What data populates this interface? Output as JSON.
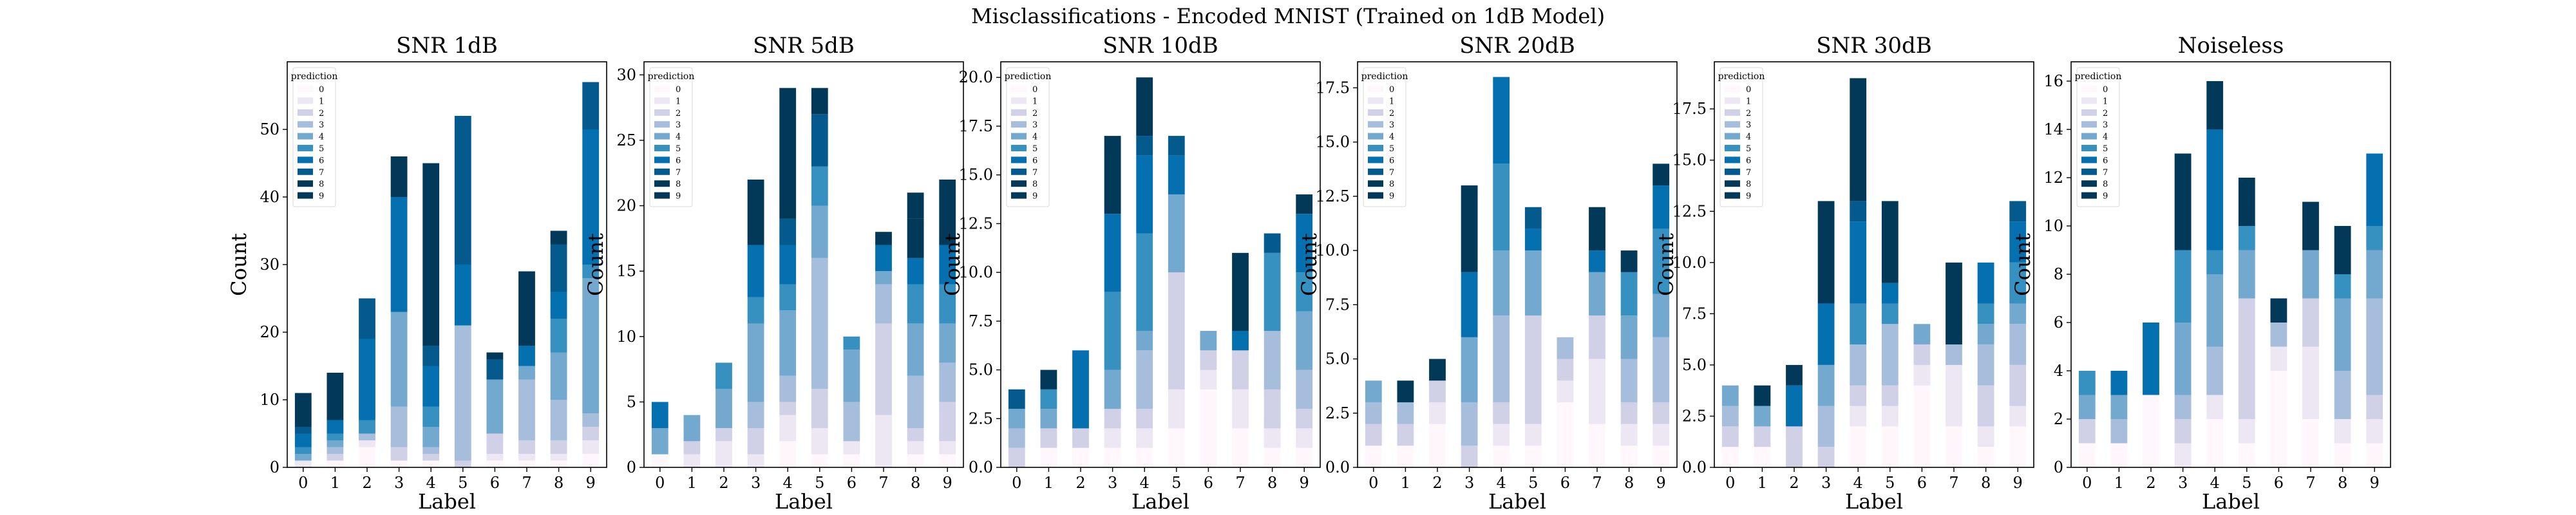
{
  "figure": {
    "suptitle": "Misclassifications - Encoded MNIST (Trained on 1dB Model)"
  },
  "palette": [
    "#fff7fb",
    "#ece7f2",
    "#d0d1e6",
    "#a6bddb",
    "#74a9cf",
    "#3690c0",
    "#0570b0",
    "#045a8d",
    "#023858",
    "#023858"
  ],
  "chart_data": [
    {
      "type": "bar",
      "stacked": true,
      "title": "SNR 1dB",
      "xlabel": "Label",
      "ylabel": "Count",
      "categories": [
        "0",
        "1",
        "2",
        "3",
        "4",
        "5",
        "6",
        "7",
        "8",
        "9"
      ],
      "ylim": [
        0,
        60
      ],
      "yticks": [
        0,
        10,
        20,
        30,
        40,
        50
      ],
      "legend": {
        "title": "prediction",
        "placement": "top-left",
        "entries": [
          "0",
          "1",
          "2",
          "3",
          "4",
          "5",
          "6",
          "7",
          "8",
          "9"
        ]
      },
      "series": [
        {
          "name": "0",
          "values": [
            0,
            1,
            3,
            1,
            1,
            0,
            1,
            1,
            1,
            2
          ]
        },
        {
          "name": "1",
          "values": [
            1,
            0,
            1,
            0,
            0,
            0,
            1,
            1,
            1,
            2
          ]
        },
        {
          "name": "2",
          "values": [
            0,
            1,
            0,
            2,
            1,
            1,
            3,
            2,
            2,
            2
          ]
        },
        {
          "name": "3",
          "values": [
            0,
            1,
            1,
            6,
            1,
            20,
            0,
            9,
            6,
            2
          ]
        },
        {
          "name": "4",
          "values": [
            1,
            1,
            0,
            14,
            3,
            0,
            8,
            2,
            7,
            20
          ]
        },
        {
          "name": "5",
          "values": [
            1,
            1,
            2,
            0,
            3,
            0,
            0,
            0,
            5,
            2
          ]
        },
        {
          "name": "6",
          "values": [
            2,
            2,
            12,
            17,
            6,
            9,
            0,
            3,
            4,
            20
          ]
        },
        {
          "name": "7",
          "values": [
            1,
            0,
            6,
            0,
            3,
            22,
            3,
            0,
            7,
            7
          ]
        },
        {
          "name": "8",
          "values": [
            3,
            6,
            0,
            6,
            27,
            0,
            1,
            10,
            0,
            0
          ]
        },
        {
          "name": "9",
          "values": [
            2,
            1,
            0,
            0,
            0,
            0,
            0,
            1,
            2,
            0
          ]
        }
      ]
    },
    {
      "type": "bar",
      "stacked": true,
      "title": "SNR 5dB",
      "xlabel": "Label",
      "ylabel": "Count",
      "categories": [
        "0",
        "1",
        "2",
        "3",
        "4",
        "5",
        "6",
        "7",
        "8",
        "9"
      ],
      "ylim": [
        0,
        31
      ],
      "yticks": [
        0,
        5,
        10,
        15,
        20,
        25,
        30
      ],
      "legend": {
        "title": "prediction",
        "placement": "top-left",
        "entries": [
          "0",
          "1",
          "2",
          "3",
          "4",
          "5",
          "6",
          "7",
          "8",
          "9"
        ]
      },
      "series": [
        {
          "name": "0",
          "values": [
            1,
            0,
            0,
            0,
            2,
            1,
            1,
            0,
            1,
            1
          ]
        },
        {
          "name": "1",
          "values": [
            0,
            1,
            2,
            1,
            2,
            2,
            1,
            4,
            1,
            1
          ]
        },
        {
          "name": "2",
          "values": [
            0,
            1,
            1,
            2,
            1,
            3,
            0,
            7,
            1,
            3
          ]
        },
        {
          "name": "3",
          "values": [
            0,
            0,
            0,
            2,
            2,
            10,
            3,
            3,
            4,
            3
          ]
        },
        {
          "name": "4",
          "values": [
            2,
            2,
            3,
            6,
            5,
            4,
            4,
            1,
            4,
            3
          ]
        },
        {
          "name": "5",
          "values": [
            0,
            0,
            2,
            2,
            2,
            3,
            1,
            0,
            3,
            3
          ]
        },
        {
          "name": "6",
          "values": [
            2,
            0,
            0,
            4,
            3,
            0,
            0,
            2,
            2,
            3
          ]
        },
        {
          "name": "7",
          "values": [
            0,
            0,
            0,
            0,
            2,
            4,
            0,
            0,
            0,
            0
          ]
        },
        {
          "name": "8",
          "values": [
            0,
            0,
            0,
            5,
            10,
            2,
            0,
            1,
            3,
            5
          ]
        },
        {
          "name": "9",
          "values": [
            0,
            0,
            0,
            0,
            0,
            0,
            0,
            0,
            2,
            0
          ]
        }
      ]
    },
    {
      "type": "bar",
      "stacked": true,
      "title": "SNR 10dB",
      "xlabel": "Label",
      "ylabel": "Count",
      "categories": [
        "0",
        "1",
        "2",
        "3",
        "4",
        "5",
        "6",
        "7",
        "8",
        "9"
      ],
      "ylim": [
        0,
        20.8
      ],
      "yticks": [
        0,
        2.5,
        5,
        7.5,
        10,
        12.5,
        15,
        17.5,
        20
      ],
      "ytick_decimals": 1,
      "legend": {
        "title": "prediction",
        "placement": "top-left",
        "entries": [
          "0",
          "1",
          "2",
          "3",
          "4",
          "5",
          "6",
          "7",
          "8",
          "9"
        ]
      },
      "series": [
        {
          "name": "0",
          "values": [
            0,
            1,
            1,
            1,
            1,
            2,
            4,
            2,
            1,
            1
          ]
        },
        {
          "name": "1",
          "values": [
            0,
            0,
            0,
            1,
            1,
            2,
            1,
            2,
            1,
            1
          ]
        },
        {
          "name": "2",
          "values": [
            1,
            1,
            1,
            1,
            1,
            6,
            1,
            2,
            2,
            1
          ]
        },
        {
          "name": "3",
          "values": [
            1,
            0,
            0,
            0,
            3,
            0,
            0,
            0,
            3,
            2
          ]
        },
        {
          "name": "4",
          "values": [
            1,
            1,
            0,
            2,
            1,
            4,
            1,
            0,
            0,
            3
          ]
        },
        {
          "name": "5",
          "values": [
            0,
            1,
            0,
            4,
            5,
            0,
            0,
            0,
            4,
            2
          ]
        },
        {
          "name": "6",
          "values": [
            0,
            0,
            4,
            4,
            4,
            2,
            0,
            1,
            0,
            3
          ]
        },
        {
          "name": "7",
          "values": [
            1,
            0,
            0,
            0,
            1,
            1,
            0,
            0,
            1,
            0
          ]
        },
        {
          "name": "8",
          "values": [
            0,
            1,
            0,
            4,
            3,
            0,
            0,
            4,
            0,
            1
          ]
        },
        {
          "name": "9",
          "values": [
            0,
            0,
            0,
            0,
            0,
            0,
            0,
            0,
            0,
            0
          ]
        }
      ]
    },
    {
      "type": "bar",
      "stacked": true,
      "title": "SNR 20dB",
      "xlabel": "Label",
      "ylabel": "Count",
      "categories": [
        "0",
        "1",
        "2",
        "3",
        "4",
        "5",
        "6",
        "7",
        "8",
        "9"
      ],
      "ylim": [
        0,
        18.7
      ],
      "yticks": [
        0,
        2.5,
        5,
        7.5,
        10,
        12.5,
        15,
        17.5
      ],
      "ytick_decimals": 1,
      "legend": {
        "title": "prediction",
        "placement": "top-left",
        "entries": [
          "0",
          "1",
          "2",
          "3",
          "4",
          "5",
          "6",
          "7",
          "8",
          "9"
        ]
      },
      "series": [
        {
          "name": "0",
          "values": [
            1,
            1,
            2,
            0,
            1,
            1,
            3,
            2,
            1,
            1
          ]
        },
        {
          "name": "1",
          "values": [
            0,
            0,
            1,
            0,
            1,
            1,
            1,
            3,
            1,
            1
          ]
        },
        {
          "name": "2",
          "values": [
            1,
            1,
            1,
            1,
            1,
            5,
            1,
            2,
            1,
            1
          ]
        },
        {
          "name": "3",
          "values": [
            1,
            1,
            0,
            2,
            4,
            0,
            1,
            0,
            2,
            3
          ]
        },
        {
          "name": "4",
          "values": [
            1,
            0,
            0,
            3,
            3,
            3,
            0,
            2,
            2,
            2
          ]
        },
        {
          "name": "5",
          "values": [
            0,
            0,
            0,
            0,
            4,
            0,
            0,
            0,
            2,
            3
          ]
        },
        {
          "name": "6",
          "values": [
            0,
            0,
            0,
            3,
            4,
            1,
            0,
            1,
            0,
            2
          ]
        },
        {
          "name": "7",
          "values": [
            0,
            0,
            0,
            0,
            0,
            1,
            0,
            0,
            0,
            0
          ]
        },
        {
          "name": "8",
          "values": [
            0,
            1,
            0,
            4,
            0,
            0,
            0,
            2,
            1,
            1
          ]
        },
        {
          "name": "9",
          "values": [
            0,
            0,
            1,
            0,
            0,
            0,
            0,
            0,
            0,
            0
          ]
        }
      ]
    },
    {
      "type": "bar",
      "stacked": true,
      "title": "SNR 30dB",
      "xlabel": "Label",
      "ylabel": "Count",
      "categories": [
        "0",
        "1",
        "2",
        "3",
        "4",
        "5",
        "6",
        "7",
        "8",
        "9"
      ],
      "ylim": [
        0,
        19.8
      ],
      "yticks": [
        0,
        2.5,
        5,
        7.5,
        10,
        12.5,
        15,
        17.5
      ],
      "ytick_decimals": 1,
      "legend": {
        "title": "prediction",
        "placement": "top-left",
        "entries": [
          "0",
          "1",
          "2",
          "3",
          "4",
          "5",
          "6",
          "7",
          "8",
          "9"
        ]
      },
      "series": [
        {
          "name": "0",
          "values": [
            1,
            1,
            0,
            0,
            2,
            2,
            4,
            2,
            1,
            2
          ]
        },
        {
          "name": "1",
          "values": [
            0,
            0,
            0,
            0,
            1,
            1,
            1,
            3,
            1,
            1
          ]
        },
        {
          "name": "2",
          "values": [
            1,
            1,
            2,
            1,
            1,
            1,
            1,
            0,
            2,
            2
          ]
        },
        {
          "name": "3",
          "values": [
            1,
            0,
            0,
            2,
            2,
            3,
            0,
            1,
            2,
            2
          ]
        },
        {
          "name": "4",
          "values": [
            1,
            1,
            0,
            2,
            0,
            0,
            1,
            0,
            1,
            1
          ]
        },
        {
          "name": "5",
          "values": [
            0,
            0,
            0,
            0,
            2,
            1,
            0,
            0,
            1,
            2
          ]
        },
        {
          "name": "6",
          "values": [
            0,
            0,
            2,
            3,
            4,
            1,
            0,
            0,
            2,
            2
          ]
        },
        {
          "name": "7",
          "values": [
            0,
            0,
            0,
            0,
            1,
            0,
            0,
            0,
            0,
            1
          ]
        },
        {
          "name": "8",
          "values": [
            0,
            1,
            1,
            5,
            6,
            4,
            0,
            4,
            0,
            0
          ]
        },
        {
          "name": "9",
          "values": [
            0,
            0,
            0,
            0,
            0,
            0,
            0,
            0,
            0,
            0
          ]
        }
      ]
    },
    {
      "type": "bar",
      "stacked": true,
      "title": "Noiseless",
      "xlabel": "Label",
      "ylabel": "Count",
      "categories": [
        "0",
        "1",
        "2",
        "3",
        "4",
        "5",
        "6",
        "7",
        "8",
        "9"
      ],
      "ylim": [
        0,
        16.8
      ],
      "yticks": [
        0,
        2,
        4,
        6,
        8,
        10,
        12,
        14,
        16
      ],
      "legend": {
        "title": "prediction",
        "placement": "top-left",
        "entries": [
          "0",
          "1",
          "2",
          "3",
          "4",
          "5",
          "6",
          "7",
          "8",
          "9"
        ]
      },
      "series": [
        {
          "name": "0",
          "values": [
            1,
            1,
            3,
            0,
            2,
            1,
            4,
            2,
            1,
            1
          ]
        },
        {
          "name": "1",
          "values": [
            0,
            0,
            0,
            1,
            1,
            1,
            1,
            3,
            1,
            1
          ]
        },
        {
          "name": "2",
          "values": [
            1,
            0,
            0,
            1,
            0,
            5,
            0,
            2,
            0,
            1
          ]
        },
        {
          "name": "3",
          "values": [
            0,
            1,
            0,
            1,
            2,
            0,
            1,
            0,
            2,
            4
          ]
        },
        {
          "name": "4",
          "values": [
            1,
            1,
            0,
            3,
            3,
            2,
            0,
            2,
            3,
            2
          ]
        },
        {
          "name": "5",
          "values": [
            1,
            0,
            0,
            3,
            1,
            1,
            0,
            0,
            1,
            1
          ]
        },
        {
          "name": "6",
          "values": [
            0,
            1,
            3,
            0,
            5,
            0,
            0,
            0,
            0,
            3
          ]
        },
        {
          "name": "7",
          "values": [
            0,
            0,
            0,
            0,
            0,
            0,
            0,
            0,
            0,
            0
          ]
        },
        {
          "name": "8",
          "values": [
            0,
            0,
            0,
            4,
            2,
            2,
            1,
            2,
            2,
            0
          ]
        },
        {
          "name": "9",
          "values": [
            0,
            0,
            0,
            0,
            0,
            0,
            0,
            0,
            0,
            0
          ]
        }
      ]
    }
  ]
}
